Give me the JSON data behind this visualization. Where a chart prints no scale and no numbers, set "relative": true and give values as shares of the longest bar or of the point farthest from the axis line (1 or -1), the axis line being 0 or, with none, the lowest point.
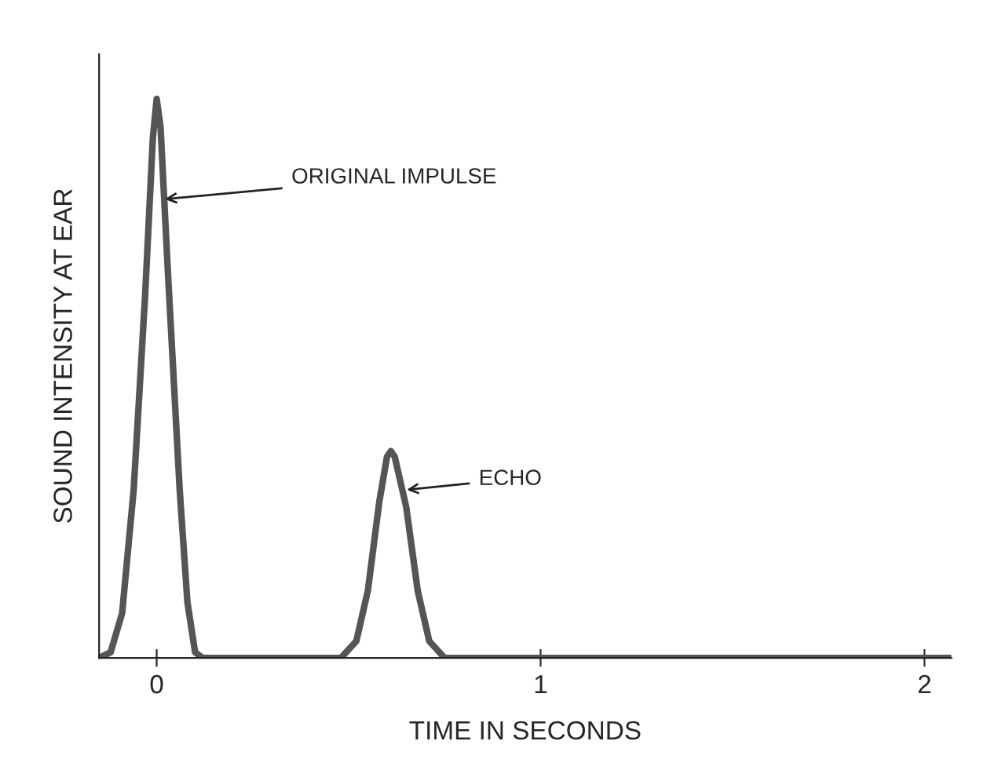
{
  "chart_data": {
    "type": "line",
    "relative": true,
    "xlabel": "TIME IN SECONDS",
    "ylabel": "SOUND INTENSITY AT EAR",
    "xlim": [
      -0.15,
      2.07
    ],
    "xticks": [
      0,
      1,
      2
    ],
    "grid": false,
    "marker": "none",
    "line_style": "solid",
    "series": [
      {
        "color": "#555555",
        "x": [
          -0.15,
          -0.12,
          -0.09,
          -0.06,
          -0.03,
          -0.01,
          0,
          0.01,
          0.03,
          0.06,
          0.08,
          0.1,
          0.12,
          0.48,
          0.52,
          0.55,
          0.58,
          0.6,
          0.61,
          0.62,
          0.65,
          0.68,
          0.71,
          0.75,
          2.07
        ],
        "values": [
          0,
          0.01,
          0.08,
          0.3,
          0.65,
          0.93,
          1,
          0.95,
          0.68,
          0.3,
          0.1,
          0.01,
          0,
          0,
          0.03,
          0.12,
          0.28,
          0.36,
          0.37,
          0.36,
          0.27,
          0.12,
          0.03,
          0,
          0
        ]
      }
    ],
    "annotations": [
      {
        "text": "ORIGINAL IMPULSE",
        "x": 0.01,
        "y": 0.82
      },
      {
        "text": "ECHO",
        "x": 0.64,
        "y": 0.3
      }
    ]
  }
}
